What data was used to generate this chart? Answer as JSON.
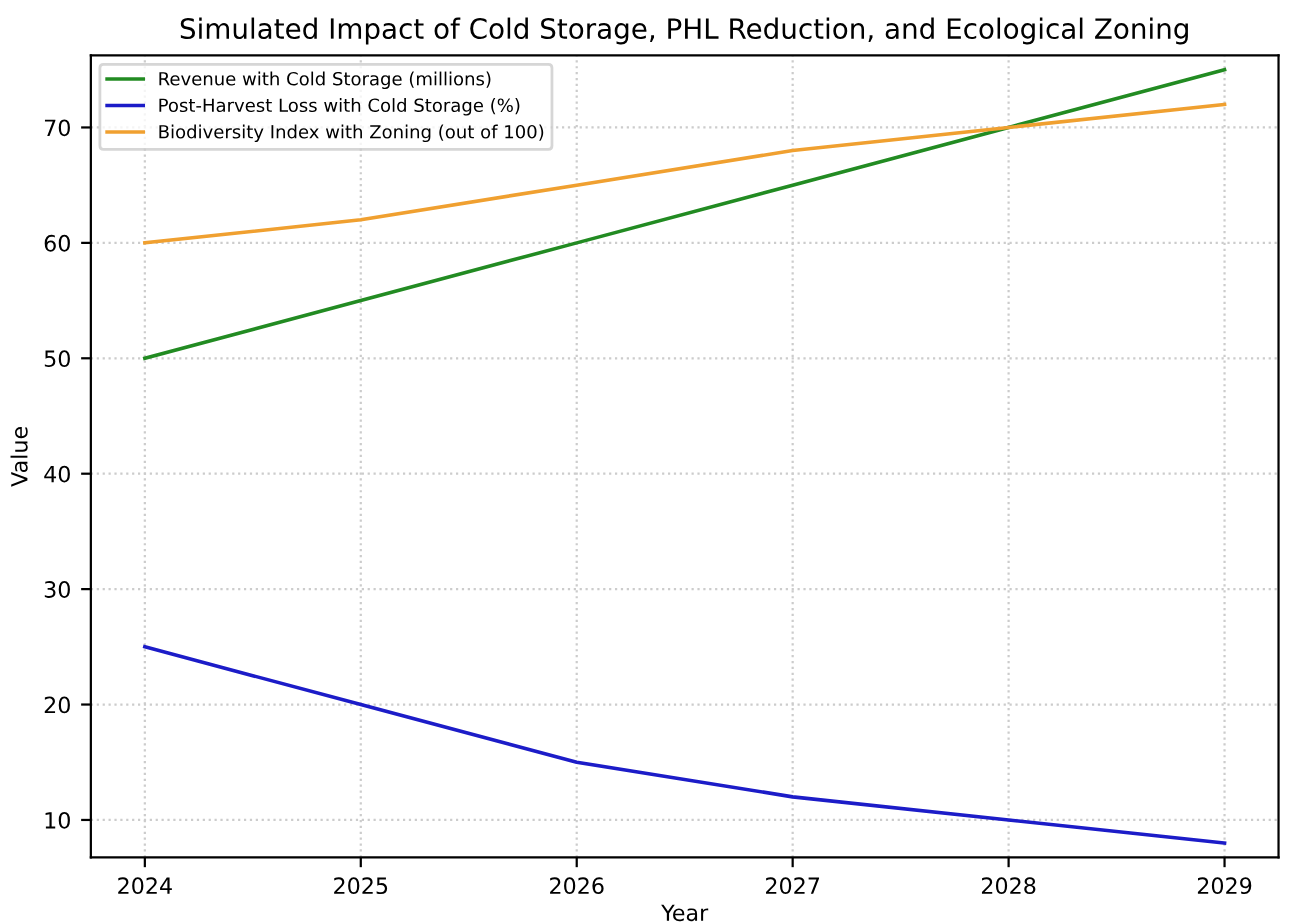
{
  "chart_data": {
    "type": "line",
    "title": "Simulated Impact of Cold Storage, PHL Reduction, and Ecological Zoning",
    "xlabel": "Year",
    "ylabel": "Value",
    "x": [
      2024,
      2025,
      2026,
      2027,
      2028,
      2029
    ],
    "series": [
      {
        "name": "Revenue with Cold Storage (millions)",
        "color": "#228b22",
        "values": [
          50,
          55,
          60,
          65,
          70,
          75
        ]
      },
      {
        "name": "Post-Harvest Loss with Cold Storage (%)",
        "color": "#1c1cc8",
        "values": [
          25,
          20,
          15,
          12,
          10,
          8
        ]
      },
      {
        "name": "Biodiversity Index with Zoning (out of 100)",
        "color": "#f0a030",
        "values": [
          60,
          62,
          65,
          68,
          70,
          72
        ]
      }
    ],
    "xlim": [
      2023.75,
      2029.25
    ],
    "xticks": [
      2024,
      2025,
      2026,
      2027,
      2028,
      2029
    ],
    "ylim": [
      6.75,
      76.25
    ],
    "yticks": [
      10,
      20,
      30,
      40,
      50,
      60,
      70
    ],
    "grid": true,
    "legend": "top left",
    "marker": "none",
    "line_style": "solid"
  }
}
